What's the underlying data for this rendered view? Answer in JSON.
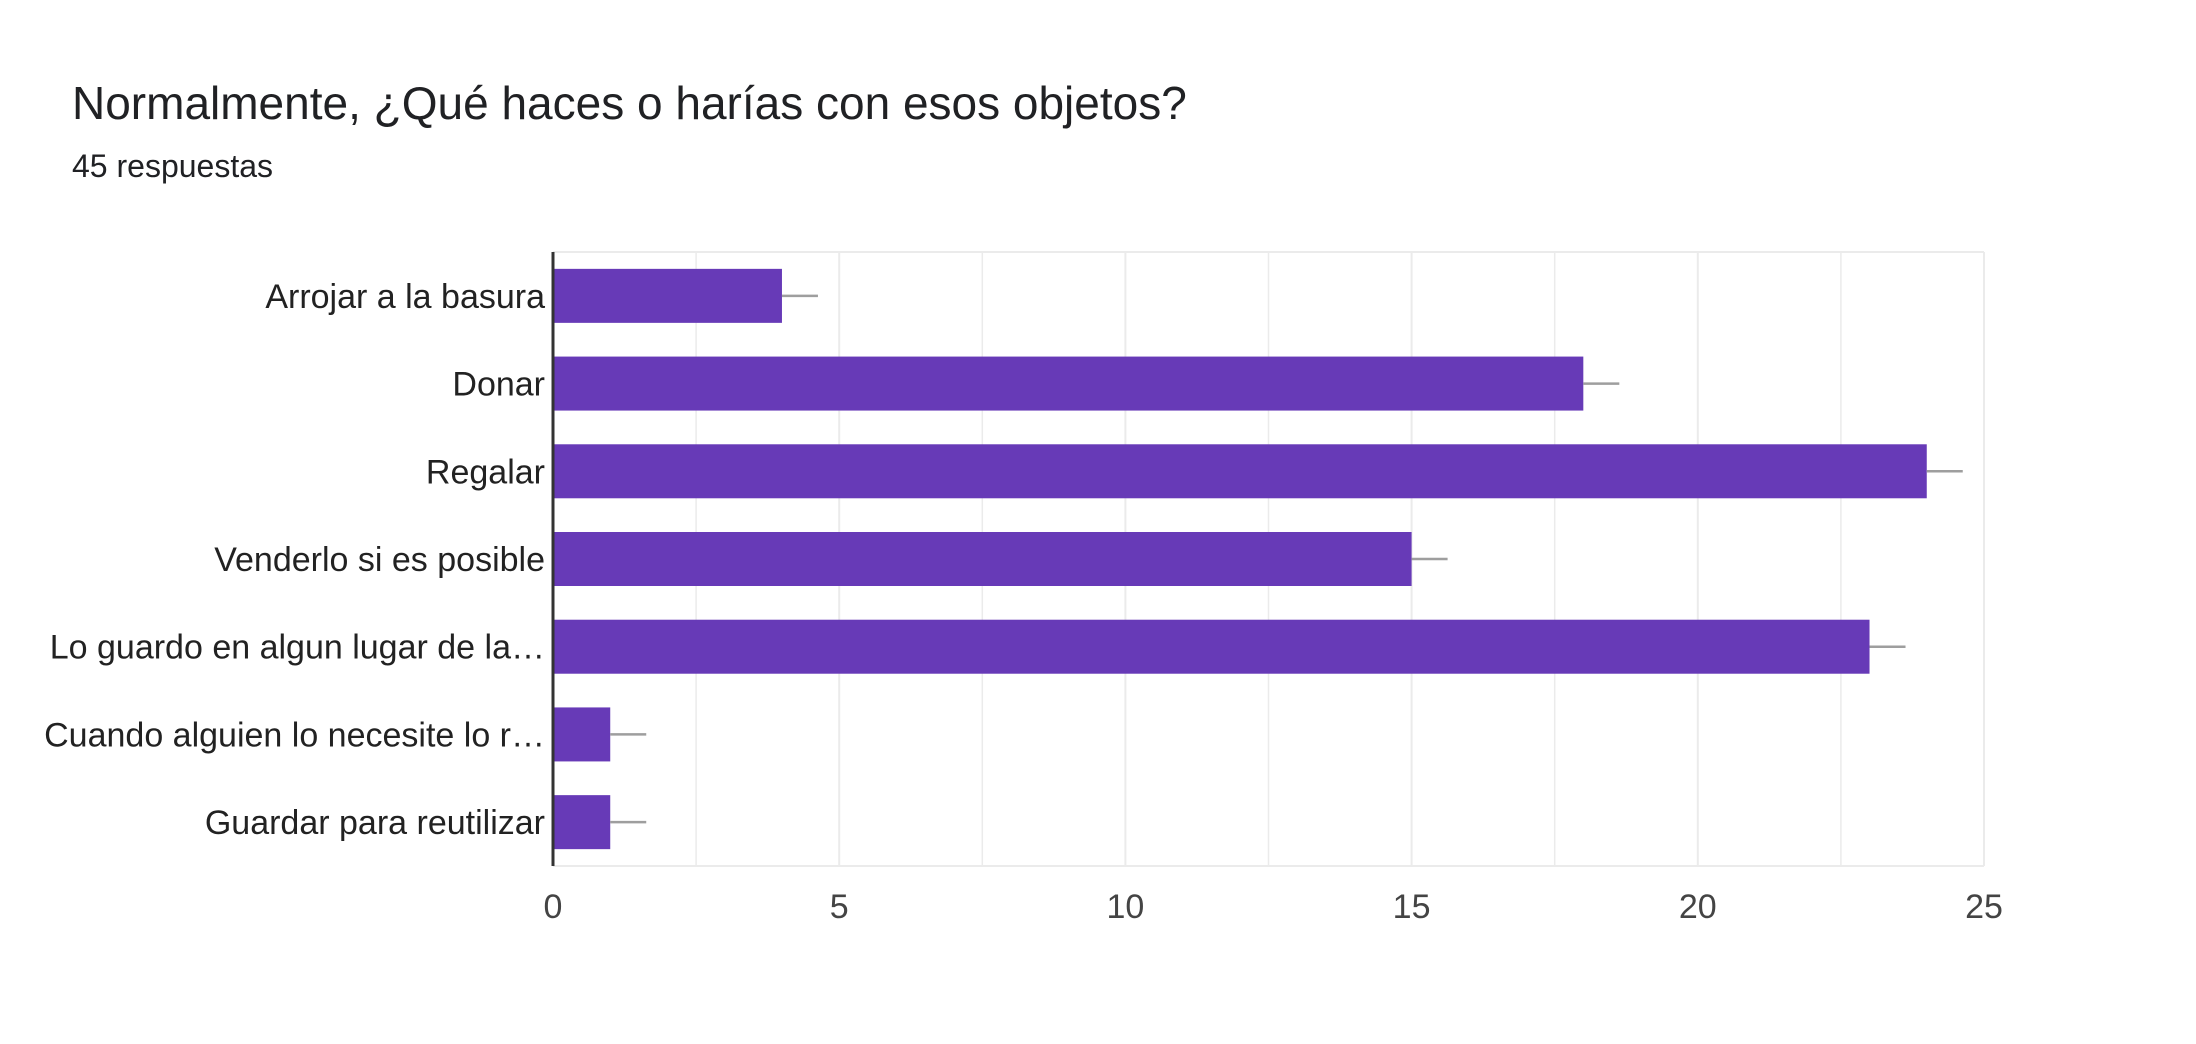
{
  "header": {
    "title": "Normalmente, ¿Qué haces o harías con esos objetos?",
    "subtitle": "45 respuestas"
  },
  "colors": {
    "bar": "#673ab7",
    "grid": "#ebebeb",
    "axis": "#333333",
    "error_bar": "#9e9e9e"
  },
  "chart_data": {
    "type": "bar",
    "orientation": "horizontal",
    "categories": [
      "Arrojar a la basura",
      "Donar",
      "Regalar",
      "Venderlo si es posible",
      "Lo guardo en algun lugar de la…",
      "Cuando alguien lo necesite lo r…",
      "Guardar para reutilizar"
    ],
    "values": [
      4,
      18,
      24,
      15,
      23,
      1,
      1
    ],
    "xlim": [
      0,
      25
    ],
    "xticks": [
      0,
      5,
      10,
      15,
      20,
      25
    ],
    "grid": true,
    "legend": "none",
    "error_bars": true
  }
}
